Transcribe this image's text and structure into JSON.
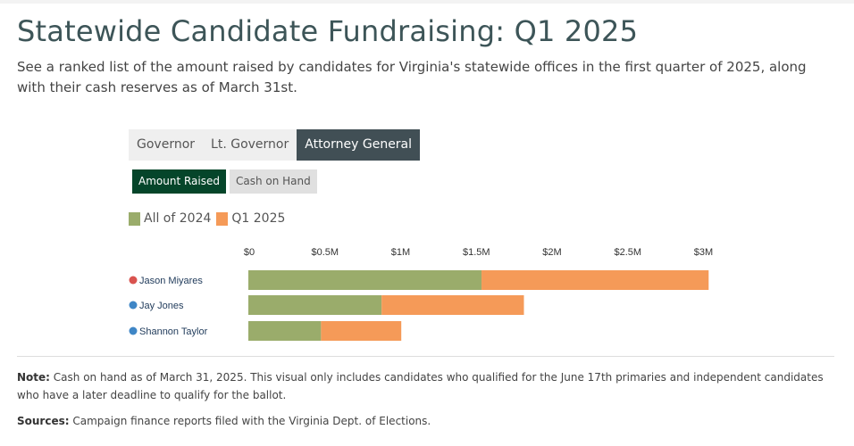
{
  "title": "Statewide Candidate Fundraising: Q1 2025",
  "subtitle": "See a ranked list of the amount raised by candidates for Virginia's statewide offices in the first quarter of 2025, along with their cash reserves as of March 31st.",
  "tabs": [
    {
      "label": "Governor",
      "active": false
    },
    {
      "label": "Lt. Governor",
      "active": false
    },
    {
      "label": "Attorney General",
      "active": true
    }
  ],
  "toggles": [
    {
      "label": "Amount Raised",
      "active": true
    },
    {
      "label": "Cash on Hand",
      "active": false
    }
  ],
  "colors": {
    "all_2024": "#9aac6b",
    "q1_2025": "#f59a58",
    "republican": "#d9534f",
    "democrat": "#3f86c6"
  },
  "chart_data": {
    "type": "bar",
    "orientation": "horizontal",
    "stacked": true,
    "categories": [
      "Jason Miyares",
      "Jay Jones",
      "Shannon Taylor"
    ],
    "party_colors": [
      "#d9534f",
      "#3f86c6",
      "#3f86c6"
    ],
    "series": [
      {
        "name": "All of 2024",
        "values": [
          1.54,
          0.88,
          0.48
        ]
      },
      {
        "name": "Q1 2025",
        "values": [
          1.5,
          0.94,
          0.53
        ]
      }
    ],
    "xlim": [
      0,
      3
    ],
    "xticks": [
      0,
      0.5,
      1,
      1.5,
      2,
      2.5,
      3
    ],
    "xtick_labels": [
      "$0",
      "$0.5M",
      "$1M",
      "$1.5M",
      "$2M",
      "$2.5M",
      "$3M"
    ],
    "units": "millions USD",
    "legend": "top-left",
    "grid": false
  },
  "note_label": "Note:",
  "note": " Cash on hand as of March 31, 2025. This visual only includes candidates who qualified for the June 17th primaries and independent candidates who have a later deadline to qualify for the ballot.",
  "sources_label": "Sources:",
  "sources": " Campaign finance reports filed with the Virginia Dept. of Elections."
}
